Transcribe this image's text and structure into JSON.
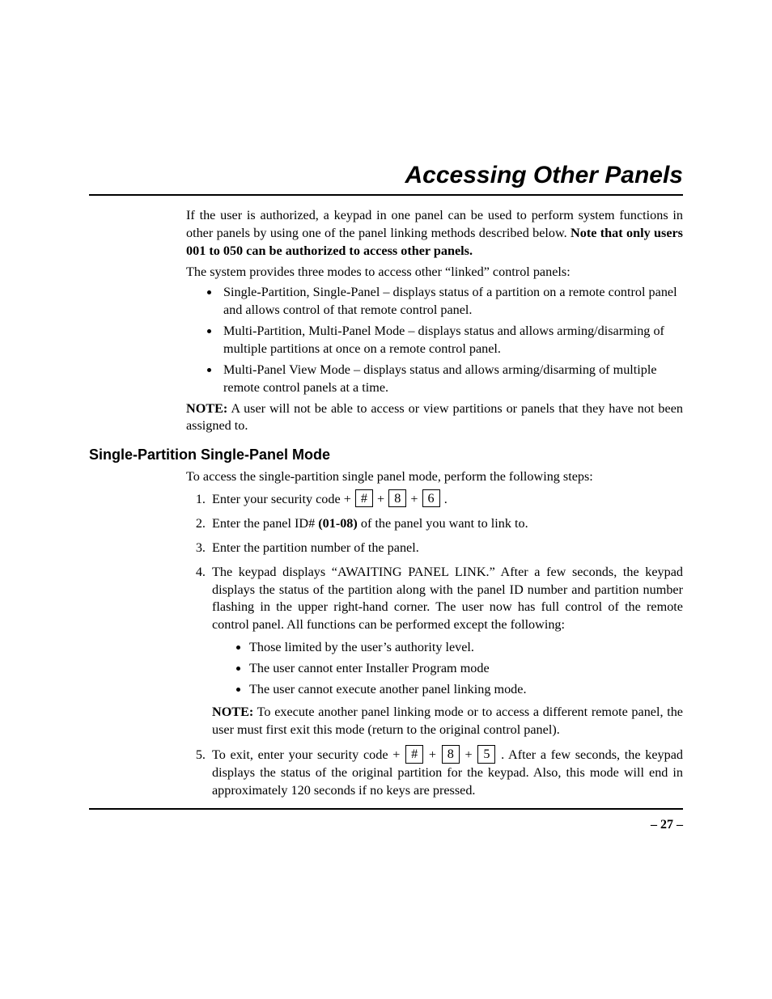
{
  "title": "Accessing Other Panels",
  "intro": {
    "para1_a": "If the user is authorized, a keypad in one panel can be used to perform system functions in other panels by using one of the panel linking methods described below. ",
    "para1_b_bold": "Note that only users 001 to 050 can be authorized to access other panels.",
    "para2": "The system provides three modes to access other “linked” control panels:",
    "bullets": [
      "Single-Partition, Single-Panel – displays status of a partition on a remote control panel and allows control of that remote control panel.",
      "Multi-Partition, Multi-Panel Mode – displays status and allows arming/disarming of multiple partitions at once on a remote control panel.",
      "Multi-Panel View Mode – displays status and allows arming/disarming of multiple remote control panels at a time."
    ],
    "note_label": "NOTE:",
    "note_text": "  A user will not be able to access or view partitions or panels that they have not been assigned to."
  },
  "section": {
    "heading": "Single-Partition Single-Panel Mode",
    "lead": "To access the single-partition single panel mode, perform the following steps:",
    "step1": {
      "pre": "Enter your security code + ",
      "k1": "#",
      "mid1": "     + ",
      "k2": "8",
      "mid2": "  + ",
      "k3": "6",
      "post": "   ."
    },
    "step2_a": "Enter the panel ID# ",
    "step2_b_bold": "(01-08)",
    "step2_c": " of the panel you want to link to.",
    "step3": "Enter the partition number of the panel.",
    "step4": {
      "para": "The keypad displays “AWAITING PANEL LINK.” After a few seconds, the keypad displays the status of the partition along with the panel ID number and partition number flashing in the upper right-hand corner. The user now has full control of the remote control panel. All functions can be performed except the following:",
      "subs": [
        "Those limited by the user’s authority level.",
        "The user cannot enter Installer Program mode",
        "The user cannot execute another panel linking mode."
      ],
      "note_label": "NOTE:",
      "note_text": " To execute another panel linking mode or to access a different remote panel, the user must first exit this mode (return to the original control panel)."
    },
    "step5": {
      "pre": "To exit, enter your security code + ",
      "k1": "#",
      "mid1": " + ",
      "k2": "8",
      "mid2": " + ",
      "k3": "5",
      "post": " . After a few seconds, ",
      "tail": "the keypad displays the status of the original partition for the keypad. Also, this mode will end in approximately 120 seconds if no keys are pressed."
    }
  },
  "page_number": "– 27 –"
}
